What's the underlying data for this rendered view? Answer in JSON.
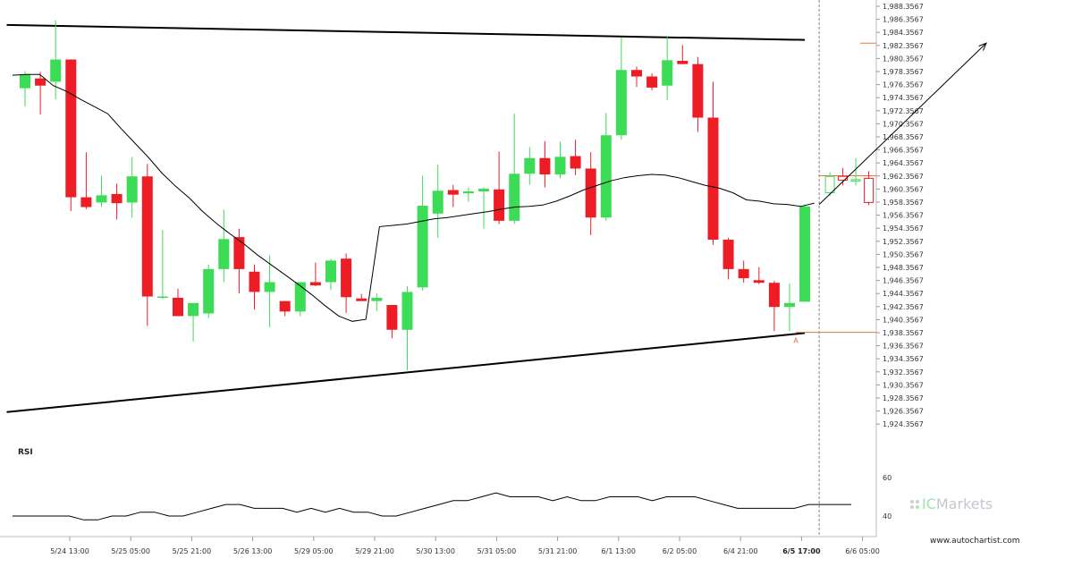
{
  "chart_data": {
    "type": "candlestick",
    "x_tick_labels": [
      "5/24 13:00",
      "5/25 05:00",
      "5/25 21:00",
      "5/26 13:00",
      "5/29 05:00",
      "5/29 21:00",
      "5/30 13:00",
      "5/31 05:00",
      "5/31 21:00",
      "6/1 13:00",
      "6/2 05:00",
      "6/4 21:00",
      "6/5 17:00",
      "6/6 05:00"
    ],
    "highlight_x_label": "6/5 17:00",
    "y_tick_labels": [
      "1,988.3567",
      "1,986.3567",
      "1,984.3567",
      "1,982.3567",
      "1,980.3567",
      "1,978.3567",
      "1,976.3567",
      "1,974.3567",
      "1,972.3567",
      "1,970.3567",
      "1,968.3567",
      "1,966.3567",
      "1,964.3567",
      "1,962.3567",
      "1,960.3567",
      "1,958.3567",
      "1,956.3567",
      "1,954.3567",
      "1,952.3567",
      "1,950.3567",
      "1,948.3567",
      "1,946.3567",
      "1,944.3567",
      "1,942.3567",
      "1,940.3567",
      "1,938.3567",
      "1,936.3567",
      "1,934.3567",
      "1,932.3567",
      "1,930.3567",
      "1,928.3567",
      "1,926.3567",
      "1,924.3567"
    ],
    "ylim": [
      1924.3567,
      1988.3567
    ],
    "candles": [
      {
        "o": 1975.8,
        "h": 1978.4,
        "l": 1973.0,
        "c": 1977.9
      },
      {
        "o": 1977.3,
        "h": 1978.3,
        "l": 1971.8,
        "c": 1976.2
      },
      {
        "o": 1976.8,
        "h": 1986.2,
        "l": 1974.1,
        "c": 1980.2
      },
      {
        "o": 1980.2,
        "h": 1980.2,
        "l": 1957.0,
        "c": 1959.1
      },
      {
        "o": 1959.1,
        "h": 1966.0,
        "l": 1957.3,
        "c": 1957.6
      },
      {
        "o": 1958.3,
        "h": 1962.4,
        "l": 1957.6,
        "c": 1959.4
      },
      {
        "o": 1959.6,
        "h": 1961.2,
        "l": 1955.7,
        "c": 1958.2
      },
      {
        "o": 1958.3,
        "h": 1965.3,
        "l": 1956.0,
        "c": 1962.3
      },
      {
        "o": 1962.3,
        "h": 1964.2,
        "l": 1939.4,
        "c": 1943.9
      },
      {
        "o": 1943.9,
        "h": 1954.1,
        "l": 1943.5,
        "c": 1943.9
      },
      {
        "o": 1943.7,
        "h": 1945.1,
        "l": 1940.9,
        "c": 1940.9
      },
      {
        "o": 1940.9,
        "h": 1942.9,
        "l": 1937.0,
        "c": 1942.9
      },
      {
        "o": 1941.3,
        "h": 1948.8,
        "l": 1940.6,
        "c": 1948.1
      },
      {
        "o": 1948.1,
        "h": 1957.2,
        "l": 1946.1,
        "c": 1952.7
      },
      {
        "o": 1953.0,
        "h": 1954.3,
        "l": 1944.4,
        "c": 1948.1
      },
      {
        "o": 1947.7,
        "h": 1948.8,
        "l": 1941.9,
        "c": 1944.6
      },
      {
        "o": 1944.6,
        "h": 1950.2,
        "l": 1939.2,
        "c": 1946.1
      },
      {
        "o": 1943.2,
        "h": 1943.2,
        "l": 1940.9,
        "c": 1941.6
      },
      {
        "o": 1941.6,
        "h": 1946.1,
        "l": 1940.9,
        "c": 1946.1
      },
      {
        "o": 1946.1,
        "h": 1949.1,
        "l": 1945.5,
        "c": 1945.6
      },
      {
        "o": 1946.1,
        "h": 1949.7,
        "l": 1944.9,
        "c": 1949.4
      },
      {
        "o": 1949.7,
        "h": 1950.5,
        "l": 1941.4,
        "c": 1943.8
      },
      {
        "o": 1943.6,
        "h": 1944.3,
        "l": 1943.2,
        "c": 1943.2
      },
      {
        "o": 1943.2,
        "h": 1944.4,
        "l": 1941.7,
        "c": 1943.7
      },
      {
        "o": 1942.6,
        "h": 1942.6,
        "l": 1937.5,
        "c": 1938.8
      },
      {
        "o": 1938.8,
        "h": 1945.5,
        "l": 1932.6,
        "c": 1944.6
      },
      {
        "o": 1945.3,
        "h": 1962.4,
        "l": 1944.8,
        "c": 1957.8
      },
      {
        "o": 1956.6,
        "h": 1964.1,
        "l": 1952.9,
        "c": 1960.1
      },
      {
        "o": 1960.2,
        "h": 1961.0,
        "l": 1957.6,
        "c": 1959.5
      },
      {
        "o": 1959.7,
        "h": 1960.6,
        "l": 1958.4,
        "c": 1960.0
      },
      {
        "o": 1960.0,
        "h": 1960.6,
        "l": 1954.3,
        "c": 1960.4
      },
      {
        "o": 1960.3,
        "h": 1966.1,
        "l": 1955.0,
        "c": 1955.5
      },
      {
        "o": 1955.5,
        "h": 1971.9,
        "l": 1955.0,
        "c": 1962.7
      },
      {
        "o": 1962.7,
        "h": 1966.8,
        "l": 1961.0,
        "c": 1965.1
      },
      {
        "o": 1965.1,
        "h": 1967.7,
        "l": 1960.6,
        "c": 1962.6
      },
      {
        "o": 1962.6,
        "h": 1967.6,
        "l": 1962.0,
        "c": 1965.3
      },
      {
        "o": 1965.4,
        "h": 1967.9,
        "l": 1962.5,
        "c": 1963.5
      },
      {
        "o": 1963.5,
        "h": 1966.0,
        "l": 1953.3,
        "c": 1956.0
      },
      {
        "o": 1956.0,
        "h": 1972.0,
        "l": 1955.5,
        "c": 1968.6
      },
      {
        "o": 1968.6,
        "h": 1983.6,
        "l": 1967.9,
        "c": 1978.6
      },
      {
        "o": 1978.6,
        "h": 1979.1,
        "l": 1976.0,
        "c": 1977.6
      },
      {
        "o": 1977.6,
        "h": 1978.1,
        "l": 1975.5,
        "c": 1975.9
      },
      {
        "o": 1976.2,
        "h": 1983.8,
        "l": 1974.0,
        "c": 1980.1
      },
      {
        "o": 1980.0,
        "h": 1982.4,
        "l": 1979.5,
        "c": 1979.5
      },
      {
        "o": 1979.5,
        "h": 1980.6,
        "l": 1969.1,
        "c": 1971.3
      },
      {
        "o": 1971.3,
        "h": 1976.8,
        "l": 1951.8,
        "c": 1952.6
      },
      {
        "o": 1952.6,
        "h": 1952.9,
        "l": 1946.5,
        "c": 1948.1
      },
      {
        "o": 1948.1,
        "h": 1949.4,
        "l": 1946.0,
        "c": 1946.7
      },
      {
        "o": 1946.4,
        "h": 1948.4,
        "l": 1945.8,
        "c": 1946.0
      },
      {
        "o": 1946.0,
        "h": 1946.3,
        "l": 1938.6,
        "c": 1942.3
      },
      {
        "o": 1942.3,
        "h": 1945.9,
        "l": 1938.6,
        "c": 1942.9
      },
      {
        "o": 1943.1,
        "h": 1958.0,
        "l": 1943.1,
        "c": 1957.7
      }
    ],
    "forecast_candles": [
      {
        "o": 1959.8,
        "h": 1962.9,
        "l": 1959.3,
        "c": 1962.3
      },
      {
        "o": 1962.3,
        "h": 1963.6,
        "l": 1960.9,
        "c": 1961.7
      },
      {
        "o": 1961.7,
        "h": 1965.1,
        "l": 1960.9,
        "c": 1961.8
      },
      {
        "o": 1962.0,
        "h": 1963.1,
        "l": 1957.9,
        "c": 1958.3
      }
    ],
    "moving_average": [
      1977.8,
      1977.9,
      1977.9,
      1976.2,
      1975.3,
      1974.1,
      1973.0,
      1971.9,
      1969.6,
      1967.4,
      1965.2,
      1962.8,
      1960.8,
      1959.0,
      1956.9,
      1955.1,
      1953.5,
      1952.0,
      1950.3,
      1948.8,
      1947.3,
      1945.8,
      1944.2,
      1942.5,
      1940.9,
      1940.1,
      1940.4,
      1954.6,
      1954.8,
      1955.0,
      1955.4,
      1955.8,
      1956.0,
      1956.3,
      1956.6,
      1956.9,
      1957.3,
      1957.6,
      1957.7,
      1957.9,
      1958.5,
      1959.3,
      1960.2,
      1960.9,
      1961.6,
      1962.1,
      1962.4,
      1962.6,
      1962.5,
      1962.1,
      1961.5,
      1960.9,
      1960.5,
      1959.8,
      1958.7,
      1958.5,
      1958.1,
      1958.0,
      1957.7,
      1958.2
    ],
    "resistance_line": {
      "from": {
        "index": -1.2,
        "value": 1985.5
      },
      "to": {
        "index": 51.0,
        "value": 1983.2
      }
    },
    "support_line": {
      "from": {
        "index": -1.2,
        "value": 1926.2
      },
      "to": {
        "index": 51.0,
        "value": 1938.3
      }
    },
    "target_level": 1982.7,
    "entry_level": 1962.4,
    "pattern_point_level": 1938.4,
    "pattern_point_label": "A",
    "projection": {
      "from_value": 1958.0,
      "to_value": 1982.7
    },
    "rsi": {
      "label": "RSI",
      "ticks": [
        60,
        40
      ],
      "values": [
        40,
        40,
        40,
        40,
        40,
        38,
        38,
        40,
        40,
        42,
        42,
        40,
        40,
        42,
        44,
        46,
        46,
        44,
        44,
        44,
        42,
        44,
        42,
        44,
        42,
        42,
        40,
        40,
        42,
        44,
        46,
        48,
        48,
        50,
        52,
        50,
        50,
        50,
        48,
        50,
        48,
        48,
        50,
        50,
        50,
        48,
        50,
        50,
        50,
        48,
        46,
        44,
        44,
        44,
        44,
        44,
        46,
        46,
        46,
        46
      ]
    },
    "colors": {
      "up": "#3ddc57",
      "down": "#ee1c25",
      "trend": "#000000",
      "level": "#e8763a",
      "ma": "#000000"
    }
  },
  "watermark": {
    "brand_prefix": "IC",
    "brand_name": "Markets"
  },
  "site": "www.autochartist.com"
}
